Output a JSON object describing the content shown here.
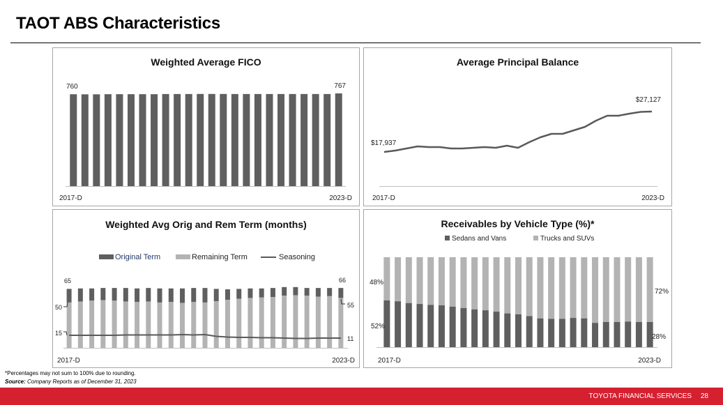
{
  "page": {
    "title": "TAOT ABS Characteristics",
    "footnote": "*Percentages may not sum to 100% due to rounding.",
    "source_label": "Source:",
    "source_text": " Company Reports as of December 31, 2023",
    "footer_brand": "TOYOTA FINANCIAL SERVICES",
    "page_number": "28"
  },
  "colors": {
    "dark_bar": "#5f5f5f",
    "light_bar": "#b3b3b3",
    "line": "#595959",
    "axis": "#bfbfbf",
    "footer_red": "#d52030",
    "legend_original_text": "#1f3864"
  },
  "chart_data": [
    {
      "id": "fico",
      "type": "bar",
      "title": "Weighted Average FICO",
      "x_start_label": "2017-D",
      "x_end_label": "2023-D",
      "first_label": "760",
      "last_label": "767",
      "values": [
        760,
        759.5,
        759.5,
        760.5,
        760.5,
        760.5,
        760.5,
        760.5,
        762,
        762,
        762,
        762.5,
        762.5,
        762.5,
        762,
        762,
        762,
        762,
        762,
        762,
        762,
        762,
        762,
        767
      ],
      "ylim": [
        0,
        800
      ],
      "grid": false
    },
    {
      "id": "principal",
      "type": "line",
      "title": "Average Principal Balance",
      "x_start_label": "2017-D",
      "x_end_label": "2023-D",
      "first_label": "$17,937",
      "last_label": "$27,127",
      "values": [
        17937,
        18250,
        18730,
        19200,
        19050,
        19050,
        18730,
        18730,
        18890,
        19050,
        18890,
        19360,
        18890,
        20150,
        21260,
        22050,
        22050,
        22850,
        23640,
        25060,
        26170,
        26170,
        26650,
        27050,
        27127
      ],
      "ylim": [
        8000,
        30000
      ],
      "grid": false
    },
    {
      "id": "term",
      "type": "bar",
      "subtype": "stacked-with-line",
      "title": "Weighted Avg Orig and Rem Term (months)",
      "x_start_label": "2017-D",
      "x_end_label": "2023-D",
      "legend": [
        {
          "name": "Original Term",
          "kind": "dark-box"
        },
        {
          "name": "Remaining Term",
          "kind": "light-box"
        },
        {
          "name": "Seasoning",
          "kind": "line"
        }
      ],
      "annotations": {
        "orig_first": "65",
        "orig_last": "66",
        "rem_first": "50",
        "rem_last": "55",
        "season_first": "15",
        "season_last": "11"
      },
      "series": [
        {
          "name": "Original Term",
          "values": [
            65,
            65.5,
            65.5,
            66,
            66,
            66,
            65.5,
            66,
            65.5,
            65.5,
            65.5,
            66,
            66,
            65,
            64.5,
            65,
            65.5,
            65.5,
            66,
            67,
            67,
            66,
            66,
            66,
            66
          ]
        },
        {
          "name": "Remaining Term",
          "values": [
            50,
            51,
            52,
            52.5,
            52,
            51,
            50.5,
            51,
            50,
            50.5,
            49.5,
            50.5,
            50,
            51.5,
            53,
            54,
            55,
            55.5,
            56,
            57.5,
            58,
            57.5,
            56.5,
            57,
            55
          ]
        },
        {
          "name": "Seasoning",
          "values": [
            15,
            15,
            15,
            15,
            15,
            15.5,
            15.5,
            15.5,
            15.5,
            15.5,
            16,
            15.5,
            16,
            13.5,
            12.5,
            12,
            12,
            11.5,
            11.5,
            11,
            10.5,
            10.5,
            11,
            11,
            11
          ]
        }
      ],
      "ylim": [
        0,
        72
      ],
      "grid": false
    },
    {
      "id": "vehicle",
      "type": "bar",
      "subtype": "stacked-100",
      "title": "Receivables by Vehicle Type (%)*",
      "x_start_label": "2017-D",
      "x_end_label": "2023-D",
      "legend": [
        {
          "name": "Sedans and Vans",
          "kind": "dark-box"
        },
        {
          "name": "Trucks and SUVs",
          "kind": "light-box"
        }
      ],
      "annotations": {
        "trucks_first": "48%",
        "sedans_first": "52%",
        "trucks_last": "72%",
        "sedans_last": "28%"
      },
      "series": [
        {
          "name": "Sedans and Vans",
          "values": [
            52,
            51,
            49,
            48,
            47,
            46.5,
            45,
            43.5,
            42,
            41,
            39.5,
            37.5,
            36.5,
            34.5,
            32,
            31.5,
            31.5,
            32.5,
            32,
            27,
            28,
            28,
            28.5,
            28,
            28
          ]
        },
        {
          "name": "Trucks and SUVs",
          "values": [
            48,
            49,
            51,
            52,
            53,
            53.5,
            55,
            56.5,
            58,
            59,
            60.5,
            62.5,
            63.5,
            65.5,
            68,
            68.5,
            68.5,
            67.5,
            68,
            73,
            72,
            72,
            71.5,
            72,
            72
          ]
        }
      ],
      "ylim": [
        0,
        100
      ],
      "grid": false
    }
  ]
}
